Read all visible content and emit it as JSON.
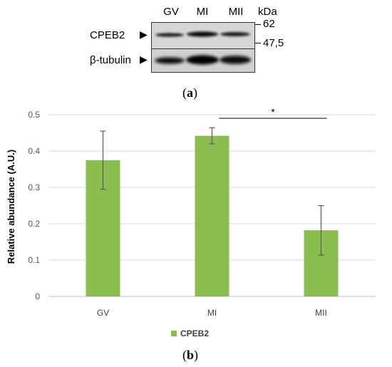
{
  "panel_a": {
    "label_open": "(",
    "label_letter": "a",
    "label_close": ")",
    "lanes": [
      "GV",
      "MI",
      "MII"
    ],
    "unit": "kDa",
    "markers": [
      "62",
      "47,5"
    ],
    "blots": [
      {
        "name": "CPEB2",
        "arrow": "▶"
      },
      {
        "name": "β-tubulin",
        "arrow": "▶"
      }
    ]
  },
  "panel_b": {
    "label_open": "(",
    "label_letter": "b",
    "label_close": ")",
    "significance": "*"
  },
  "chart_data": {
    "type": "bar",
    "categories": [
      "GV",
      "MI",
      "MII"
    ],
    "series": [
      {
        "name": "CPEB2",
        "values": [
          0.375,
          0.442,
          0.182
        ],
        "errors": [
          0.08,
          0.022,
          0.068
        ],
        "color": "#8cbd50"
      }
    ],
    "title": "",
    "xlabel": "",
    "ylabel": "Relative abundance (A.U.)",
    "ylim": [
      0,
      0.5
    ],
    "yticks": [
      "0",
      "0.1",
      "0.2",
      "0.3",
      "0.4",
      "0.5"
    ],
    "grid": true,
    "legend": "bottom-center",
    "annotations": [
      {
        "text": "*",
        "from": "MI",
        "to": "MII"
      }
    ]
  }
}
